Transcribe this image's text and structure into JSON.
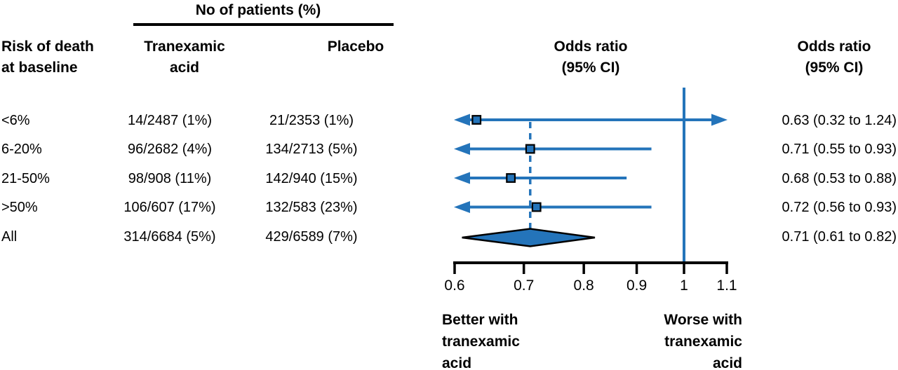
{
  "colors": {
    "accent": "#2474ba",
    "ink": "#000000"
  },
  "headers": {
    "risk": "Risk of death\nat baseline",
    "patients_group": "No of patients (%)",
    "tranexamic": "Tranexamic\nacid",
    "placebo": "Placebo",
    "plot_or": "Odds ratio\n(95% CI)",
    "text_or": "Odds ratio\n(95% CI)"
  },
  "chart_data": {
    "type": "forest",
    "x_scale": "log",
    "axis_min": 0.6,
    "axis_max": 1.1,
    "tick_values": [
      0.6,
      0.7,
      0.8,
      0.9,
      1,
      1.1
    ],
    "tick_labels": [
      "0.6",
      "0.7",
      "0.8",
      "0.9",
      "1",
      "1.1"
    ],
    "reference_line": 1,
    "overall_dashed_line": 0.71,
    "rows": [
      {
        "label": "<6%",
        "tranexamic": "14/2487 (1%)",
        "placebo": "21/2353 (1%)",
        "or": 0.63,
        "lo": 0.32,
        "hi": 1.24,
        "or_text": "0.63 (0.32 to 1.24)",
        "summary": false
      },
      {
        "label": "6-20%",
        "tranexamic": "96/2682 (4%)",
        "placebo": "134/2713 (5%)",
        "or": 0.71,
        "lo": 0.55,
        "hi": 0.93,
        "or_text": "0.71 (0.55 to 0.93)",
        "summary": false
      },
      {
        "label": "21-50%",
        "tranexamic": "98/908 (11%)",
        "placebo": "142/940 (15%)",
        "or": 0.68,
        "lo": 0.53,
        "hi": 0.88,
        "or_text": "0.68 (0.53 to 0.88)",
        "summary": false
      },
      {
        "label": ">50%",
        "tranexamic": "106/607 (17%)",
        "placebo": "132/583 (23%)",
        "or": 0.72,
        "lo": 0.56,
        "hi": 0.93,
        "or_text": "0.72 (0.56 to 0.93)",
        "summary": false
      },
      {
        "label": "All",
        "tranexamic": "314/6684 (5%)",
        "placebo": "429/6589 (7%)",
        "or": 0.71,
        "lo": 0.61,
        "hi": 0.82,
        "or_text": "0.71 (0.61 to 0.82)",
        "summary": true
      }
    ],
    "better_label": "Better with\ntranexamic\nacid",
    "worse_label": "Worse with\ntranexamic\nacid"
  }
}
